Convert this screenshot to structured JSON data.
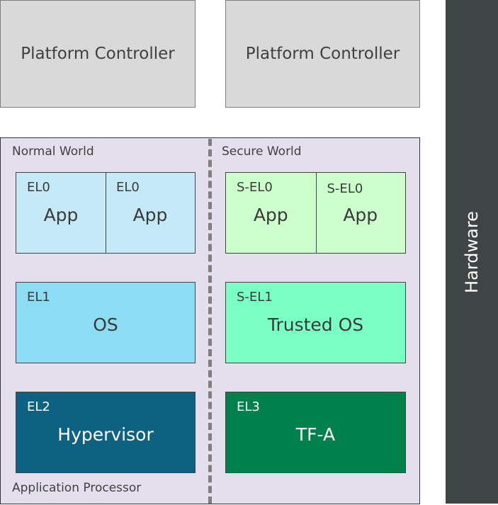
{
  "platform_controllers": [
    {
      "label": "Platform Controller"
    },
    {
      "label": "Platform Controller"
    }
  ],
  "hardware": {
    "label": "Hardware",
    "color": "#3f4444"
  },
  "application_processor": {
    "label": "Application Processor",
    "color": "#e4dfec"
  },
  "normal_world": {
    "label": "Normal World",
    "el0": [
      {
        "level": "EL0",
        "name": "App"
      },
      {
        "level": "EL0",
        "name": "App"
      }
    ],
    "el1": {
      "level": "EL1",
      "name": "OS"
    },
    "el2": {
      "level": "EL2",
      "name": "Hypervisor"
    },
    "colors": {
      "el0": "#c5eaf7",
      "el1": "#8cdcf4",
      "el2": "#0e6281"
    }
  },
  "secure_world": {
    "label": "Secure World",
    "el0": [
      {
        "level": "S-EL0",
        "name": "App"
      },
      {
        "level": "S-EL0",
        "name": "App"
      }
    ],
    "el1": {
      "level": "S-EL1",
      "name": "Trusted OS"
    },
    "el3": {
      "level": "EL3",
      "name": "TF-A"
    },
    "colors": {
      "el0": "#ccffcc",
      "el1": "#7affc4",
      "el3": "#00804a"
    }
  }
}
